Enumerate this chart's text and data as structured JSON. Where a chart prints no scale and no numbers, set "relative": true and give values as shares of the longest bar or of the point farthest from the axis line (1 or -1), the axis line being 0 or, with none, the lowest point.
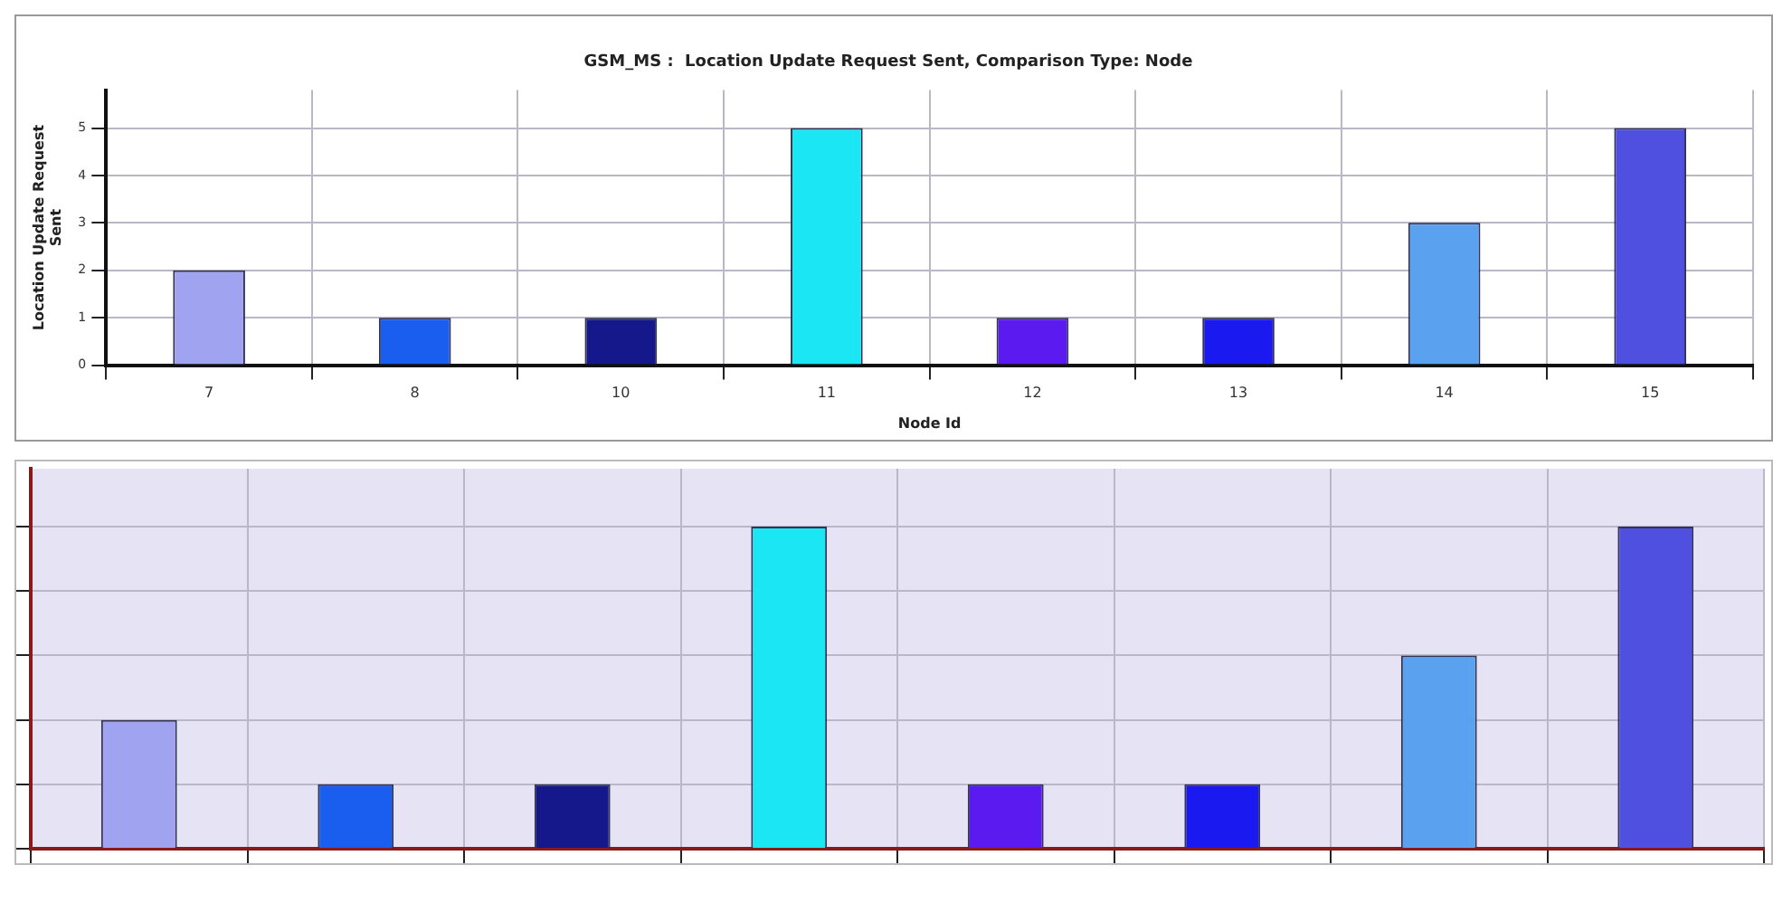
{
  "chart_data": [
    {
      "type": "bar",
      "title": "GSM_MS :  Location Update Request Sent, Comparison Type: Node",
      "xlabel": "Node Id",
      "ylabel": "Location Update Request Sent",
      "categories": [
        "7",
        "8",
        "10",
        "11",
        "12",
        "13",
        "14",
        "15"
      ],
      "values": [
        2,
        1,
        1,
        5,
        1,
        1,
        3,
        5
      ],
      "colors": [
        "#a0a4f0",
        "#1a5ef0",
        "#14188a",
        "#1ae6f4",
        "#5a1af0",
        "#1a1af0",
        "#5aa2f0",
        "#5050e0"
      ],
      "ylim": [
        0,
        5.8
      ],
      "yticks": [
        0,
        1,
        2,
        3,
        4,
        5
      ],
      "grid": true
    },
    {
      "type": "bar",
      "categories": [
        null,
        null,
        null,
        null,
        null,
        null,
        null,
        null
      ],
      "values": [
        0.4,
        0.2,
        0.2,
        1,
        0.2,
        0.2,
        0.6,
        1
      ],
      "colors": [
        "#a0a4f0",
        "#1a5ef0",
        "#14188a",
        "#1ae6f4",
        "#5a1af0",
        "#1a1af0",
        "#5aa2f0",
        "#5050e0"
      ],
      "relative": true,
      "grid": true,
      "tick_labels": false
    }
  ]
}
